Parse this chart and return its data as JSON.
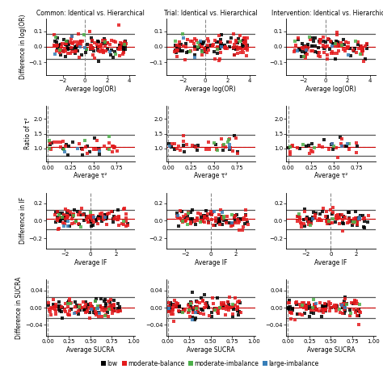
{
  "titles": [
    "Common: Identical vs. Hierarchical",
    "Trial: Identical vs. Hierarchical",
    "Intervention: Identical vs. Hierarchical"
  ],
  "row_ylabels": [
    "Difference in log(OR)",
    "Ratio of τ²",
    "Difference in IF",
    "Difference in SUCRA"
  ],
  "row_xlabels": [
    "Average log(OR)",
    "Average τ²",
    "Average IF",
    "Average SUCRA"
  ],
  "colors": {
    "low": "#000000",
    "moderate_balance": "#e41a1c",
    "moderate_imbalance": "#4daf4a",
    "large_imbalance": "#377eb8"
  },
  "legend_labels": [
    "low",
    "moderate-balance",
    "moderate-imbalance",
    "large-imbalance"
  ],
  "hline_color": "#555555",
  "dashed_color": "#888888",
  "marker_size": 3,
  "row0": {
    "xlim": [
      -3.5,
      4.5
    ],
    "ylim": [
      -0.18,
      0.18
    ],
    "mean_line": 0.0,
    "loa_upper": 0.08,
    "loa_lower": -0.08,
    "vline": 0.0,
    "yticks": [
      -0.1,
      0.0,
      0.1
    ],
    "xticks": [
      -2,
      0,
      2,
      4
    ]
  },
  "row1": {
    "xlim": [
      -0.02,
      0.95
    ],
    "ylim": [
      0.55,
      2.45
    ],
    "mean_line": 1.05,
    "loa_upper": 1.45,
    "loa_lower": 0.75,
    "vline": 0.0,
    "yticks": [
      1.0,
      1.5,
      2.0
    ],
    "xticks": [
      0.0,
      0.25,
      0.5,
      0.75
    ]
  },
  "row2": {
    "xlim": [
      -3.5,
      3.5
    ],
    "ylim": [
      -0.32,
      0.32
    ],
    "mean_line": 0.02,
    "loa_upper": 0.12,
    "loa_lower": -0.1,
    "vline": 0.0,
    "yticks": [
      -0.2,
      0.0,
      0.2
    ],
    "xticks": [
      -2,
      0,
      2
    ]
  },
  "row3": {
    "xlim": [
      -0.02,
      1.02
    ],
    "ylim": [
      -0.065,
      0.065
    ],
    "mean_line": 0.0,
    "loa_upper": 0.025,
    "loa_lower": -0.025,
    "vline": 0.0,
    "yticks": [
      -0.04,
      0.0,
      0.04
    ],
    "xticks": [
      0.0,
      0.25,
      0.5,
      0.75,
      1.0
    ]
  }
}
